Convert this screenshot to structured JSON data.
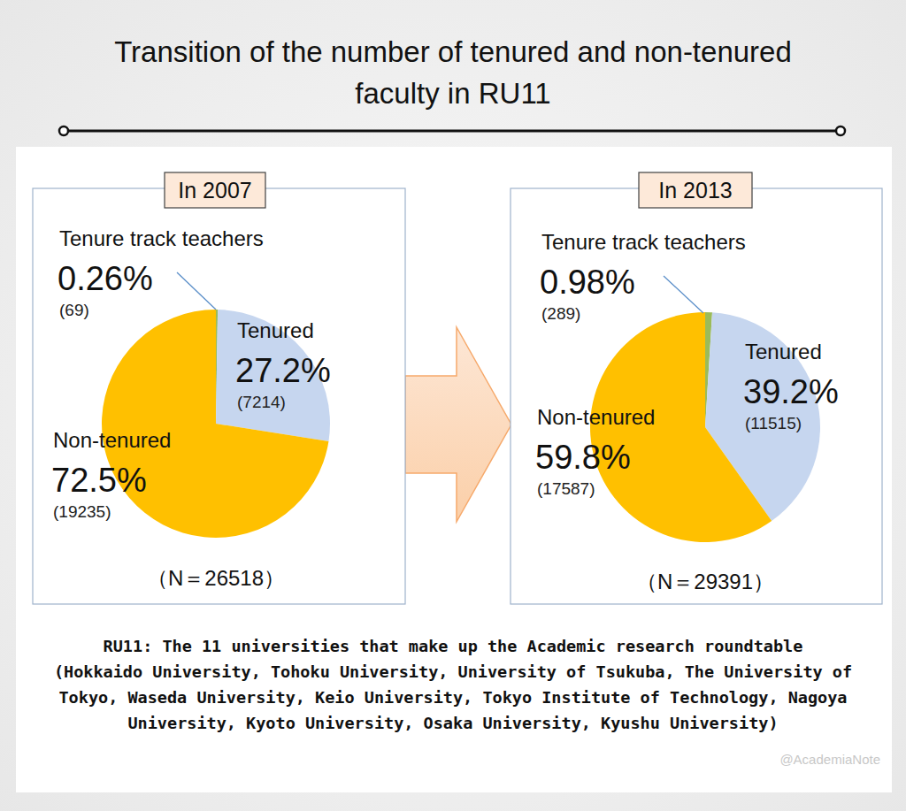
{
  "title_lines": [
    "Transition of the number of tenured and non-tenured",
    "faculty in RU11"
  ],
  "chart_data": [
    {
      "type": "pie",
      "title": "In 2007",
      "categories": [
        "Tenure track teachers",
        "Tenured",
        "Non-tenured"
      ],
      "values": [
        0.26,
        27.2,
        72.5
      ],
      "value_labels": [
        "0.26%",
        "27.2%",
        "72.5%"
      ],
      "count_labels": [
        "(69)",
        "(7214)",
        "(19235)"
      ],
      "colors": [
        "#9bbb59",
        "#c6d6ef",
        "#ffc000"
      ],
      "data_labels": true,
      "n_label": "（N＝26518）"
    },
    {
      "type": "pie",
      "title": "In 2013",
      "categories": [
        "Tenure track teachers",
        "Tenured",
        "Non-tenured"
      ],
      "values": [
        0.98,
        39.2,
        59.8
      ],
      "value_labels": [
        "0.98%",
        "39.2%",
        "59.8%"
      ],
      "count_labels": [
        "(289)",
        "(11515)",
        "(17587)"
      ],
      "colors": [
        "#9bbb59",
        "#c6d6ef",
        "#ffc000"
      ],
      "data_labels": true,
      "n_label": "（N＝29391）"
    }
  ],
  "note_lines": [
    "RU11: The 11 universities that make up the Academic research roundtable",
    "(Hokkaido University, Tohoku University, University of Tsukuba, The University of",
    "Tokyo, Waseda University, Keio University, Tokyo Institute of Technology, Nagoya",
    "University, Kyoto University, Osaka University, Kyushu University)"
  ],
  "watermark": "@AcademiaNote"
}
